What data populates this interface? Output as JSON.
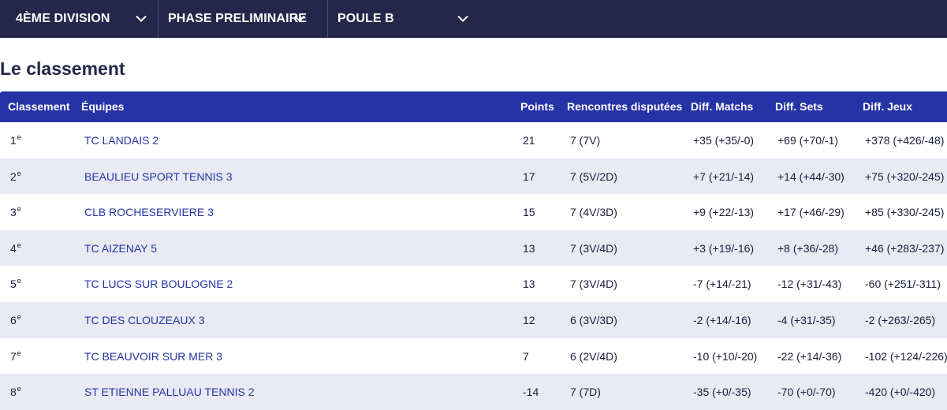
{
  "filters": [
    {
      "label": "4ÈME DIVISION"
    },
    {
      "label": "PHASE PRELIMINAIRE"
    },
    {
      "label": "POULE B"
    }
  ],
  "icons": {
    "dropdown": "chevron-down-icon"
  },
  "colors": {
    "topbar": "#25264a",
    "table_header": "#2633a6",
    "row_alt": "#e8eaf4",
    "team_link": "#2633a6"
  },
  "page_title": "Le classement",
  "table": {
    "headers": {
      "rank": "Classement",
      "team": "Équipes",
      "points": "Points",
      "rencontres": "Rencontres disputées",
      "diff_matchs": "Diff. Matchs",
      "diff_sets": "Diff. Sets",
      "diff_jeux": "Diff. Jeux"
    },
    "rank_suffix": "e",
    "rows": [
      {
        "rank": "1",
        "team": "TC LANDAIS 2",
        "points": "21",
        "rencontres": "7 (7V)",
        "diff_matchs": "+35 (+35/-0)",
        "diff_sets": "+69 (+70/-1)",
        "diff_jeux": "+378 (+426/-48)"
      },
      {
        "rank": "2",
        "team": "BEAULIEU SPORT TENNIS 3",
        "points": "17",
        "rencontres": "7 (5V/2D)",
        "diff_matchs": "+7 (+21/-14)",
        "diff_sets": "+14 (+44/-30)",
        "diff_jeux": "+75 (+320/-245)"
      },
      {
        "rank": "3",
        "team": "CLB ROCHESERVIERE 3",
        "points": "15",
        "rencontres": "7 (4V/3D)",
        "diff_matchs": "+9 (+22/-13)",
        "diff_sets": "+17 (+46/-29)",
        "diff_jeux": "+85 (+330/-245)"
      },
      {
        "rank": "4",
        "team": "TC AIZENAY 5",
        "points": "13",
        "rencontres": "7 (3V/4D)",
        "diff_matchs": "+3 (+19/-16)",
        "diff_sets": "+8 (+36/-28)",
        "diff_jeux": "+46 (+283/-237)"
      },
      {
        "rank": "5",
        "team": "TC LUCS SUR BOULOGNE 2",
        "points": "13",
        "rencontres": "7 (3V/4D)",
        "diff_matchs": "-7 (+14/-21)",
        "diff_sets": "-12 (+31/-43)",
        "diff_jeux": "-60 (+251/-311)"
      },
      {
        "rank": "6",
        "team": "TC DES CLOUZEAUX 3",
        "points": "12",
        "rencontres": "6 (3V/3D)",
        "diff_matchs": "-2 (+14/-16)",
        "diff_sets": "-4 (+31/-35)",
        "diff_jeux": "-2 (+263/-265)"
      },
      {
        "rank": "7",
        "team": "TC BEAUVOIR SUR MER 3",
        "points": "7",
        "rencontres": "6 (2V/4D)",
        "diff_matchs": "-10 (+10/-20)",
        "diff_sets": "-22 (+14/-36)",
        "diff_jeux": "-102 (+124/-226)"
      },
      {
        "rank": "8",
        "team": "ST ETIENNE PALLUAU TENNIS 2",
        "points": "-14",
        "rencontres": "7 (7D)",
        "diff_matchs": "-35 (+0/-35)",
        "diff_sets": "-70 (+0/-70)",
        "diff_jeux": "-420 (+0/-420)"
      }
    ]
  }
}
